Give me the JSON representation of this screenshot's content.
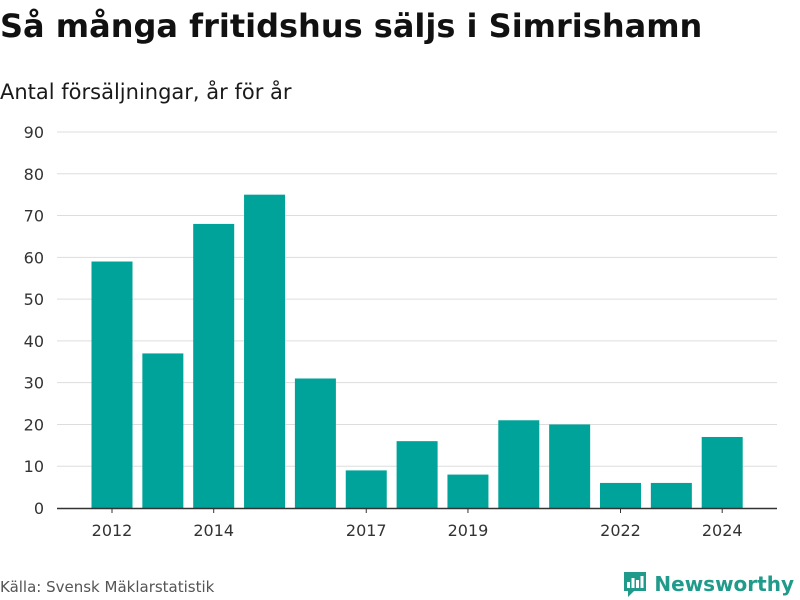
{
  "title": "Så många fritidshus säljs i Simrishamn",
  "subtitle": "Antal försäljningar, år för år",
  "footer": {
    "source": "Källa: Svensk Mäklarstatistik",
    "brand": "Newsworthy"
  },
  "colors": {
    "bar": "#00a39a",
    "grid": "#dddddd",
    "axis": "#333333",
    "brand": "#1f9a8b"
  },
  "icons": {
    "brand_logo": "bar-chart-speech-bubble-icon"
  },
  "chart_data": {
    "type": "bar",
    "title": "Så många fritidshus säljs i Simrishamn",
    "subtitle": "Antal försäljningar, år för år",
    "categories": [
      "2012",
      "2013",
      "2014",
      "2015",
      "2016",
      "2017",
      "2018",
      "2019",
      "2020",
      "2021",
      "2022",
      "2023",
      "2024"
    ],
    "values": [
      59,
      37,
      68,
      75,
      31,
      9,
      16,
      8,
      21,
      20,
      6,
      6,
      17
    ],
    "x_tick_labels": [
      "2012",
      "2014",
      "2017",
      "2019",
      "2022",
      "2024"
    ],
    "y_ticks": [
      0,
      10,
      20,
      30,
      40,
      50,
      60,
      70,
      80,
      90
    ],
    "ylim": [
      0,
      90
    ],
    "grid": true,
    "legend": "none"
  }
}
